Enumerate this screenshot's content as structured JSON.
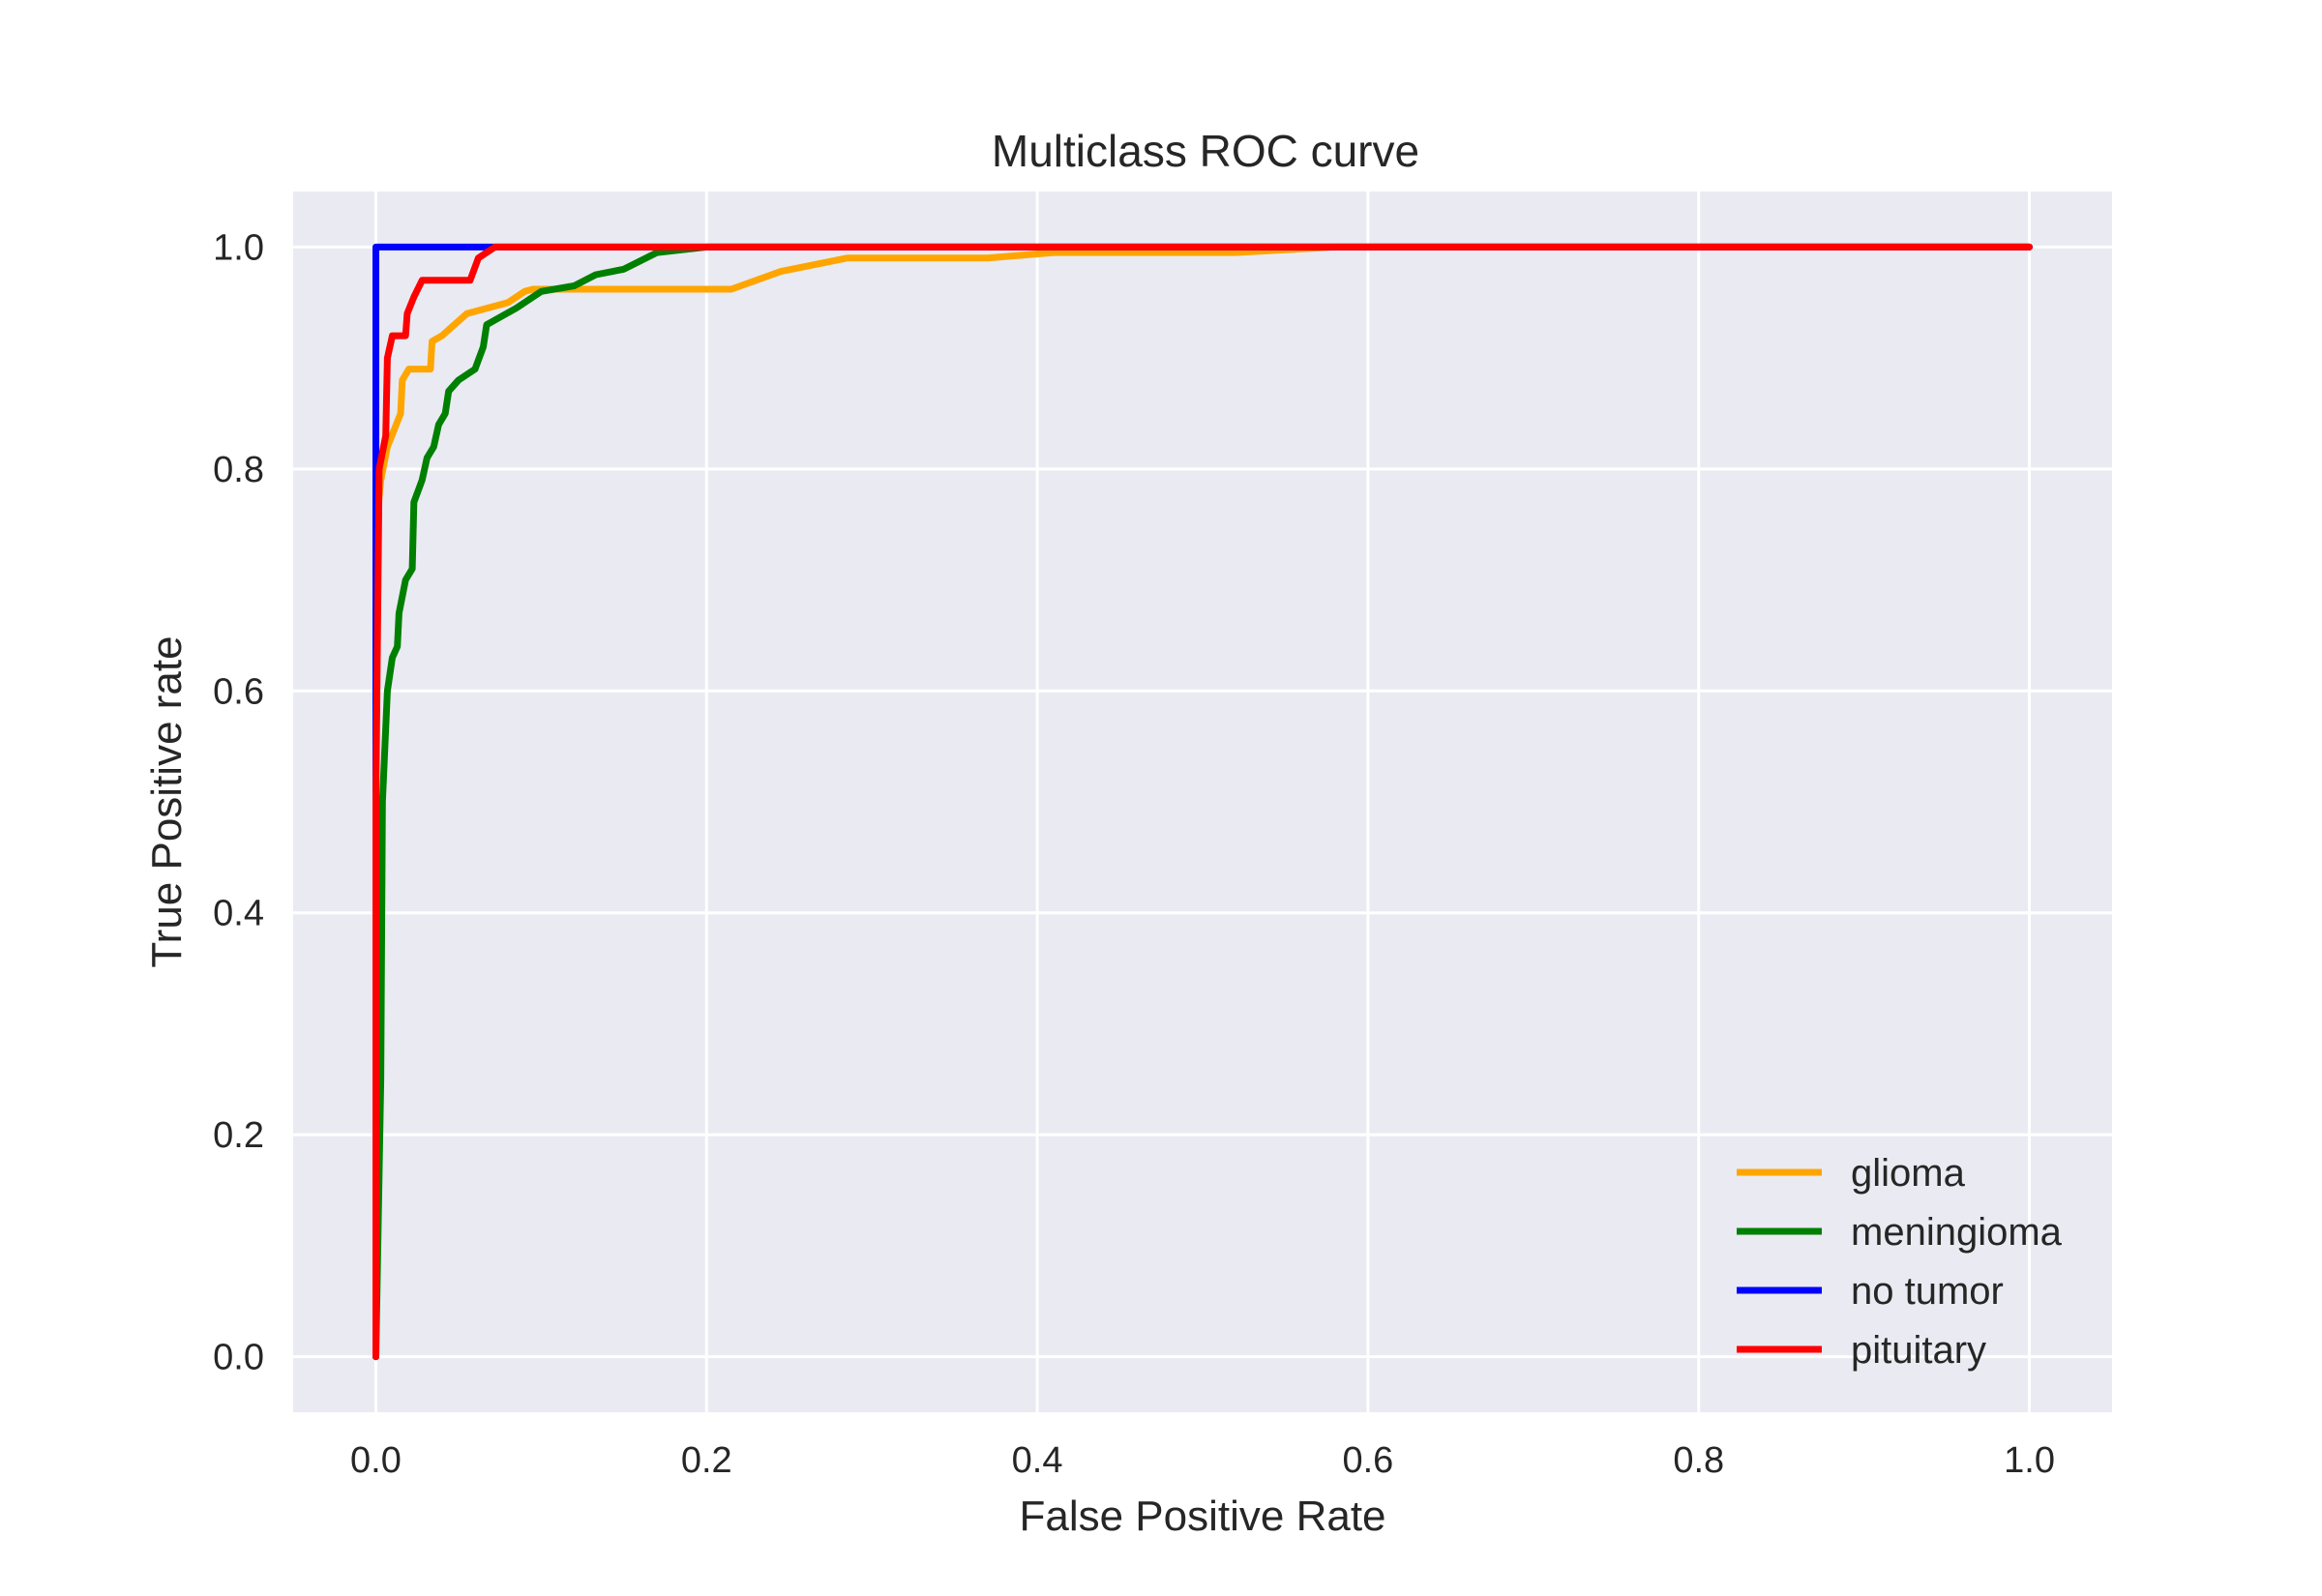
{
  "chart_data": {
    "type": "line",
    "title": "Multiclass ROC curve",
    "xlabel": "False Positive Rate",
    "ylabel": "True Positive rate",
    "xlim": [
      -0.05,
      1.05
    ],
    "ylim": [
      -0.05,
      1.05
    ],
    "xticks": [
      0.0,
      0.2,
      0.4,
      0.6,
      0.8,
      1.0
    ],
    "yticks": [
      0.0,
      0.2,
      0.4,
      0.6,
      0.8,
      1.0
    ],
    "xtick_labels": [
      "0.0",
      "0.2",
      "0.4",
      "0.6",
      "0.8",
      "1.0"
    ],
    "ytick_labels": [
      "0.0",
      "0.2",
      "0.4",
      "0.6",
      "0.8",
      "1.0"
    ],
    "grid": true,
    "background_color": "#eaeaf2",
    "legend_position": "bottom-right",
    "series": [
      {
        "name": "glioma",
        "color": "#ffa500",
        "x": [
          0,
          0,
          0.003,
          0.007,
          0.015,
          0.016,
          0.02,
          0.033,
          0.034,
          0.04,
          0.055,
          0.08,
          0.09,
          0.095,
          0.12,
          0.2,
          0.215,
          0.245,
          0.285,
          0.37,
          0.41,
          0.52,
          0.58,
          1.0
        ],
        "y": [
          0,
          0.745,
          0.79,
          0.82,
          0.85,
          0.88,
          0.89,
          0.89,
          0.915,
          0.92,
          0.94,
          0.95,
          0.96,
          0.962,
          0.962,
          0.962,
          0.962,
          0.978,
          0.99,
          0.99,
          0.995,
          0.995,
          1.0,
          1.0
        ]
      },
      {
        "name": "meningioma",
        "color": "#008000",
        "x": [
          0,
          0.003,
          0.004,
          0.007,
          0.01,
          0.013,
          0.014,
          0.018,
          0.022,
          0.023,
          0.028,
          0.031,
          0.035,
          0.038,
          0.042,
          0.044,
          0.05,
          0.06,
          0.065,
          0.067,
          0.085,
          0.1,
          0.12,
          0.133,
          0.15,
          0.17,
          0.2,
          1.0
        ],
        "y": [
          0,
          0.25,
          0.5,
          0.6,
          0.63,
          0.64,
          0.67,
          0.7,
          0.71,
          0.77,
          0.79,
          0.81,
          0.82,
          0.84,
          0.85,
          0.87,
          0.88,
          0.89,
          0.91,
          0.93,
          0.945,
          0.96,
          0.965,
          0.975,
          0.98,
          0.995,
          1.0,
          1.0
        ]
      },
      {
        "name": "no tumor",
        "color": "#0000ff",
        "x": [
          0,
          0,
          1.0
        ],
        "y": [
          0,
          1.0,
          1.0
        ]
      },
      {
        "name": "pituitary",
        "color": "#ff0000",
        "x": [
          0,
          0,
          0.002,
          0.006,
          0.007,
          0.01,
          0.018,
          0.019,
          0.023,
          0.028,
          0.057,
          0.062,
          0.072,
          1.0
        ],
        "y": [
          0,
          0.5,
          0.8,
          0.83,
          0.9,
          0.92,
          0.92,
          0.94,
          0.955,
          0.97,
          0.97,
          0.99,
          1.0,
          1.0
        ]
      }
    ]
  }
}
